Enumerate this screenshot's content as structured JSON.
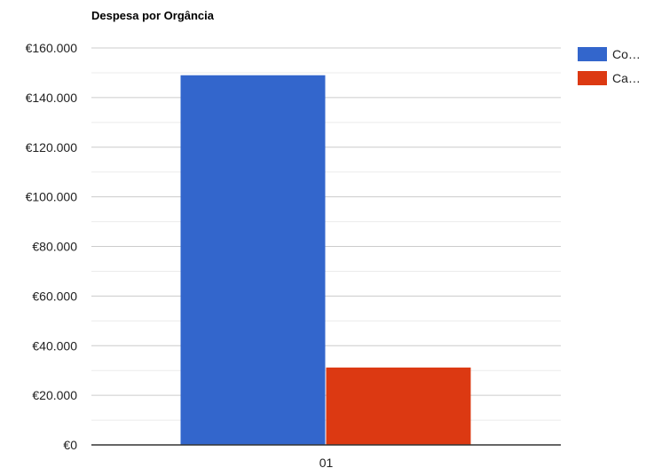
{
  "chart_data": {
    "type": "bar",
    "title": "Despesa por Orgância",
    "categories": [
      "01"
    ],
    "series": [
      {
        "name": "Co…",
        "values": [
          149000
        ],
        "color": "#3366cc"
      },
      {
        "name": "Ca…",
        "values": [
          31200
        ],
        "color": "#dc3912"
      }
    ],
    "ylim": [
      0,
      160000
    ],
    "yticks": [
      0,
      20000,
      40000,
      60000,
      80000,
      100000,
      120000,
      140000,
      160000
    ],
    "ytick_labels": [
      "€0",
      "€20.000",
      "€40.000",
      "€60.000",
      "€80.000",
      "€100.000",
      "€120.000",
      "€140.000",
      "€160.000"
    ],
    "grid": true,
    "legend_position": "right"
  }
}
